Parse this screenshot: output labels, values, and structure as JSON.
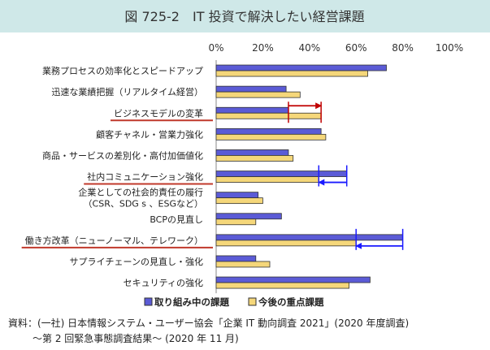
{
  "title": "図 725-2　IT 投資で解決したい経営課題",
  "legend": {
    "current": "取り組み中の課題",
    "future": "今後の重点課題"
  },
  "colors": {
    "current": "#5b5bd6",
    "future": "#f5d77a",
    "bar_stroke": "#333333",
    "arrow_red": "#c00000",
    "arrow_blue": "#1a1aff",
    "underline": "#c0392b",
    "title_bg": "#cfe8e8"
  },
  "source": {
    "line1": "資料：(一社) 日本情報システム・ユーザー協会「企業 IT 動向調査 2021」(2020 年度調査)",
    "line2": "～第 2 回緊急事態調査結果～ (2020 年 11 月)"
  },
  "chart_data": {
    "type": "bar",
    "orientation": "horizontal",
    "xlim": [
      0,
      100
    ],
    "x_ticks": [
      "0%",
      "20%",
      "40%",
      "60%",
      "80%",
      "100%"
    ],
    "categories": [
      {
        "lines": [
          "業務プロセスの効率化とスピードアップ"
        ],
        "underline": false
      },
      {
        "lines": [
          "迅速な業績把握（リアルタイム経営）"
        ],
        "underline": false
      },
      {
        "lines": [
          "ビジネスモデルの変革"
        ],
        "underline": true
      },
      {
        "lines": [
          "顧客チャネル・営業力強化"
        ],
        "underline": false
      },
      {
        "lines": [
          "商品・サービスの差別化・高付加価値化"
        ],
        "underline": false
      },
      {
        "lines": [
          "社内コミュニケーション強化"
        ],
        "underline": true
      },
      {
        "lines": [
          "企業としての社会的責任の履行",
          "（CSR、SDG s 、ESGなど）"
        ],
        "underline": false
      },
      {
        "lines": [
          "BCPの見直し"
        ],
        "underline": false
      },
      {
        "lines": [
          "働き方改革（ニューノーマル、テレワーク）"
        ],
        "underline": true
      },
      {
        "lines": [
          "サプライチェーンの見直し・強化"
        ],
        "underline": false
      },
      {
        "lines": [
          "セキュリティの強化"
        ],
        "underline": false
      }
    ],
    "series": [
      {
        "name": "取り組み中の課題",
        "values": [
          73,
          30,
          31,
          45,
          31,
          56,
          18,
          28,
          80,
          17,
          66
        ]
      },
      {
        "name": "今後の重点課題",
        "values": [
          65,
          36,
          45,
          47,
          33,
          44,
          20,
          17,
          60,
          23,
          57
        ]
      }
    ],
    "arrows": [
      {
        "category_index": 2,
        "from": 31,
        "to": 45,
        "color": "red"
      },
      {
        "category_index": 5,
        "from": 56,
        "to": 44,
        "color": "blue"
      },
      {
        "category_index": 8,
        "from": 80,
        "to": 60,
        "color": "blue"
      }
    ]
  }
}
